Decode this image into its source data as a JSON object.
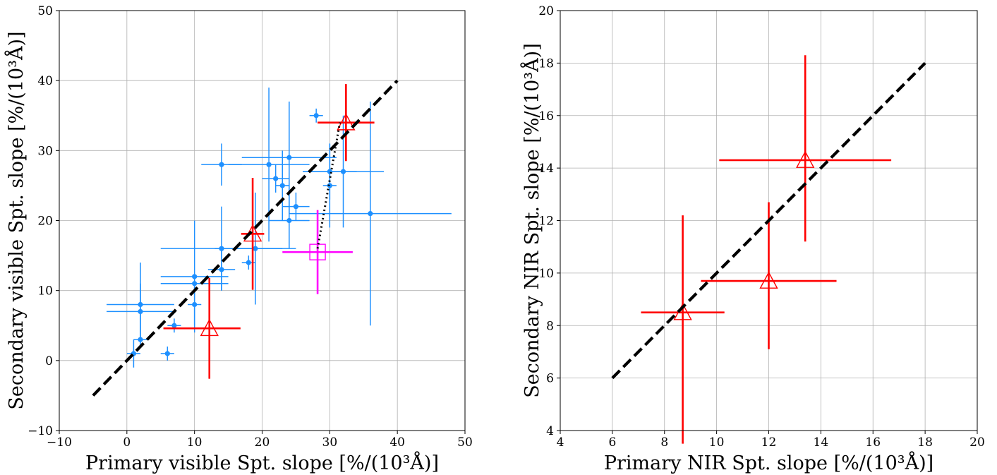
{
  "chart_data": [
    {
      "type": "scatter",
      "xlabel": "Primary visible Spt. slope [%/(10³Å)]",
      "ylabel": "Secondary visible Spt. slope [%/(10³Å)]",
      "xlim": [
        -10,
        50
      ],
      "ylim": [
        -10,
        50
      ],
      "xticks": [
        -10,
        0,
        10,
        20,
        30,
        40,
        50
      ],
      "yticks": [
        -10,
        0,
        10,
        20,
        30,
        40,
        50
      ],
      "xtick_labels": [
        "−10",
        "0",
        "10",
        "20",
        "30",
        "40",
        "50"
      ],
      "ytick_labels": [
        "−10",
        "0",
        "10",
        "20",
        "30",
        "40",
        "50"
      ],
      "grid": true,
      "series": [
        {
          "marker": "circle",
          "color": "#1e90ff",
          "points": [
            {
              "x": 2,
              "y": 8,
              "xerr": 5,
              "yerr": 6
            },
            {
              "x": 2,
              "y": 7,
              "xerr": 5,
              "yerr": 4
            },
            {
              "x": 2,
              "y": 3,
              "xerr": 1,
              "yerr": 0
            },
            {
              "x": 1,
              "y": 1,
              "xerr": 1,
              "yerr": 2
            },
            {
              "x": 6,
              "y": 1,
              "xerr": 1,
              "yerr": 1
            },
            {
              "x": 7,
              "y": 5,
              "xerr": 1,
              "yerr": 1
            },
            {
              "x": 10,
              "y": 12,
              "xerr": 5,
              "yerr": 8
            },
            {
              "x": 10,
              "y": 11,
              "xerr": 5,
              "yerr": 1
            },
            {
              "x": 10,
              "y": 8,
              "xerr": 1,
              "yerr": 3
            },
            {
              "x": 14,
              "y": 28,
              "xerr": 3,
              "yerr": 3
            },
            {
              "x": 14,
              "y": 16,
              "xerr": 9,
              "yerr": 6
            },
            {
              "x": 14,
              "y": 13,
              "xerr": 2,
              "yerr": 3
            },
            {
              "x": 18,
              "y": 14,
              "xerr": 1,
              "yerr": 1
            },
            {
              "x": 19,
              "y": 16,
              "xerr": 6,
              "yerr": 8
            },
            {
              "x": 21,
              "y": 28,
              "xerr": 6,
              "yerr": 11
            },
            {
              "x": 22,
              "y": 26,
              "xerr": 2,
              "yerr": 2
            },
            {
              "x": 23,
              "y": 25,
              "xerr": 1,
              "yerr": 5
            },
            {
              "x": 24,
              "y": 29,
              "xerr": 7,
              "yerr": 8
            },
            {
              "x": 24,
              "y": 20,
              "xerr": 3,
              "yerr": 4
            },
            {
              "x": 25,
              "y": 22,
              "xerr": 2,
              "yerr": 2
            },
            {
              "x": 28,
              "y": 35,
              "xerr": 1,
              "yerr": 1
            },
            {
              "x": 30,
              "y": 27,
              "xerr": 4,
              "yerr": 4
            },
            {
              "x": 30,
              "y": 25,
              "xerr": 1,
              "yerr": 6
            },
            {
              "x": 32,
              "y": 27,
              "xerr": 6,
              "yerr": 8
            },
            {
              "x": 36,
              "y": 21,
              "xerr": 12,
              "yerr": 16
            }
          ]
        },
        {
          "marker": "triangle",
          "color": "#ff0000",
          "points": [
            {
              "x": 12.2,
              "y": 4.6,
              "xerr": 4.6,
              "yerr": 7.2,
              "xerr_lo": 6.8
            },
            {
              "x": 18.6,
              "y": 18.1,
              "xerr": 1.7,
              "yerr": 8.0
            },
            {
              "x": 32.4,
              "y": 34.0,
              "xerr": 4.2,
              "yerr": 5.5
            }
          ]
        },
        {
          "marker": "square",
          "color": "#ff00ff",
          "points": [
            {
              "x": 28.2,
              "y": 15.5,
              "xerr": 5.2,
              "yerr": 6.0
            }
          ]
        }
      ],
      "lines": [
        {
          "style": "dashed",
          "color": "#000000",
          "x": [
            -5,
            40
          ],
          "y": [
            -5,
            40
          ]
        },
        {
          "style": "dotted",
          "color": "#000000",
          "x": [
            28.2,
            31.5
          ],
          "y": [
            16.0,
            34.0
          ]
        }
      ]
    },
    {
      "type": "scatter",
      "xlabel": "Primary NIR Spt. slope [%/(10³Å)]",
      "ylabel": "Secondary NIR Spt. slope [%/(10³Å)]",
      "xlim": [
        4,
        20
      ],
      "ylim": [
        4,
        20
      ],
      "xticks": [
        4,
        6,
        8,
        10,
        12,
        14,
        16,
        18,
        20
      ],
      "yticks": [
        4,
        6,
        8,
        10,
        12,
        14,
        16,
        18,
        20
      ],
      "xtick_labels": [
        "4",
        "6",
        "8",
        "10",
        "12",
        "14",
        "16",
        "18",
        "20"
      ],
      "ytick_labels": [
        "4",
        "6",
        "8",
        "10",
        "12",
        "14",
        "16",
        "18",
        "20"
      ],
      "grid": true,
      "series": [
        {
          "marker": "triangle",
          "color": "#ff0000",
          "points": [
            {
              "x": 8.7,
              "y": 8.5,
              "xerr": 1.6,
              "yerr": 3.7,
              "yerr_lo": 5.0
            },
            {
              "x": 12.0,
              "y": 9.7,
              "xerr": 2.6,
              "yerr": 3.0,
              "yerr_lo": 2.6
            },
            {
              "x": 13.4,
              "y": 14.3,
              "xerr": 3.3,
              "yerr": 4.0,
              "yerr_lo": 3.1
            }
          ]
        }
      ],
      "lines": [
        {
          "style": "dashed",
          "color": "#000000",
          "x": [
            6,
            18
          ],
          "y": [
            6,
            18
          ]
        }
      ]
    }
  ]
}
